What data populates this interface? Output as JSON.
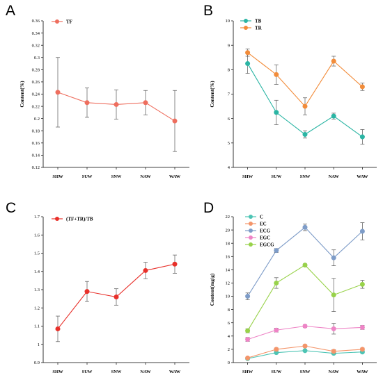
{
  "chart_data": [
    {
      "type": "line",
      "panel_label": "A",
      "categories": [
        "SHW",
        "SUW",
        "SNW",
        "NAW",
        "WAW"
      ],
      "ylabel": "Content(%)",
      "ylim": [
        0.12,
        0.36
      ],
      "yticks": [
        "0.12",
        "0.14",
        "0.16",
        "0.18",
        "0.2",
        "0.22",
        "0.24",
        "0.26",
        "0.28",
        "0.3",
        "0.32",
        "0.34",
        "0.36"
      ],
      "legend_position": "top-left",
      "series": [
        {
          "name": "TF",
          "color": "#EE6E5E",
          "values": [
            0.243,
            0.226,
            0.223,
            0.226,
            0.196
          ],
          "errors": [
            0.057,
            0.024,
            0.024,
            0.02,
            0.05
          ]
        }
      ]
    },
    {
      "type": "line",
      "panel_label": "B",
      "categories": [
        "SHW",
        "SUW",
        "SNW",
        "NAW",
        "WAW"
      ],
      "ylabel": "Content(%)",
      "ylim": [
        4,
        10
      ],
      "yticks": [
        "4",
        "5",
        "6",
        "7",
        "8",
        "9",
        "10"
      ],
      "legend_position": "top-left",
      "series": [
        {
          "name": "TB",
          "color": "#2BB5A4",
          "values": [
            8.25,
            6.25,
            5.35,
            6.1,
            5.25
          ],
          "errors": [
            0.4,
            0.5,
            0.15,
            0.12,
            0.3
          ]
        },
        {
          "name": "TR",
          "color": "#F28C3A",
          "values": [
            8.7,
            7.8,
            6.5,
            8.35,
            7.3
          ],
          "errors": [
            0.15,
            0.4,
            0.35,
            0.2,
            0.15
          ]
        }
      ]
    },
    {
      "type": "line",
      "panel_label": "C",
      "categories": [
        "SHW",
        "SUW",
        "SNW",
        "NAW",
        "WAW"
      ],
      "ylabel": "",
      "ylim": [
        0.9,
        1.7
      ],
      "yticks": [
        "0.9",
        "1",
        "1.1",
        "1.2",
        "1.3",
        "1.4",
        "1.5",
        "1.6",
        "1.7"
      ],
      "legend_position": "top-left",
      "series": [
        {
          "name": "(TF+TR)/TB",
          "color": "#E8302A",
          "values": [
            1.085,
            1.29,
            1.26,
            1.405,
            1.44
          ],
          "errors": [
            0.07,
            0.055,
            0.045,
            0.045,
            0.05
          ]
        }
      ]
    },
    {
      "type": "line",
      "panel_label": "D",
      "categories": [
        "SHW",
        "SUW",
        "SNW",
        "NAW",
        "WAW"
      ],
      "ylabel": "Content(mg/g)",
      "ylim": [
        0,
        22
      ],
      "yticks": [
        "0",
        "2",
        "4",
        "6",
        "8",
        "10",
        "12",
        "14",
        "16",
        "18",
        "20",
        "22"
      ],
      "legend_position": "top-left",
      "series": [
        {
          "name": "C",
          "color": "#4DC4B4",
          "values": [
            0.6,
            1.5,
            1.8,
            1.4,
            1.6
          ],
          "errors": [
            0.1,
            0.15,
            0.1,
            0.15,
            0.15
          ]
        },
        {
          "name": "EC",
          "color": "#F4956A",
          "values": [
            0.7,
            2.0,
            2.5,
            1.7,
            2.0
          ],
          "errors": [
            0.1,
            0.2,
            0.2,
            0.25,
            0.2
          ]
        },
        {
          "name": "ECG",
          "color": "#7E9CC8",
          "values": [
            10.0,
            16.9,
            20.4,
            15.8,
            19.8
          ],
          "errors": [
            0.5,
            0.3,
            0.5,
            1.2,
            1.3
          ]
        },
        {
          "name": "EGC",
          "color": "#EE84C6",
          "values": [
            3.5,
            4.9,
            5.5,
            5.1,
            5.3
          ],
          "errors": [
            0.3,
            0.3,
            0.2,
            0.8,
            0.3
          ]
        },
        {
          "name": "EGCG",
          "color": "#98D24A",
          "values": [
            4.8,
            12.0,
            14.7,
            10.2,
            11.8
          ],
          "errors": [
            0.3,
            0.8,
            0.2,
            2.5,
            0.6
          ]
        }
      ]
    }
  ]
}
